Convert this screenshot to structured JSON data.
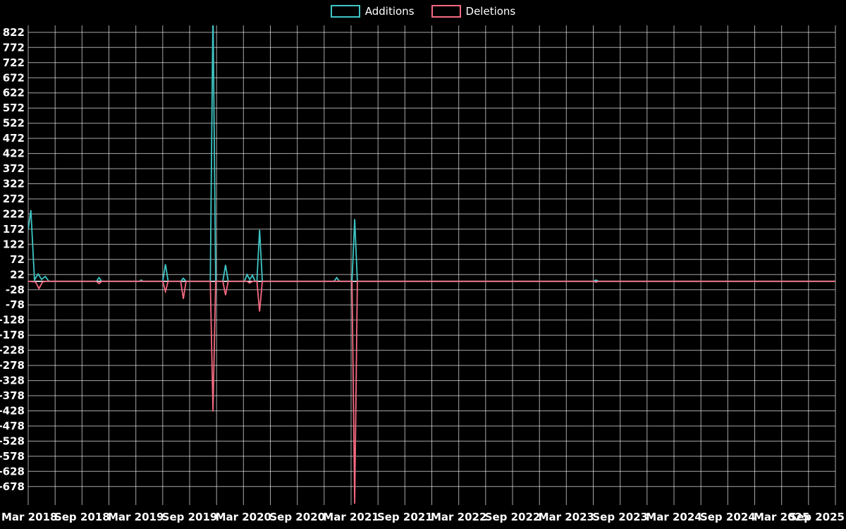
{
  "page": {
    "background": "#000000",
    "text_color": "#ffffff"
  },
  "chart_data": {
    "type": "line",
    "grid": true,
    "grid_color": "rgba(255,255,255,0.65)",
    "zero_line_color": "#ffffff",
    "background": "#000000",
    "legend": {
      "position": "top-center",
      "items": [
        "Additions",
        "Deletions"
      ]
    },
    "x_axis": {
      "label": "",
      "range_months": [
        0,
        90
      ],
      "gridline_every_months": 3,
      "tick_months": [
        0,
        6,
        12,
        18,
        24,
        30,
        36,
        42,
        48,
        54,
        60,
        66,
        72,
        78,
        84,
        90
      ],
      "tick_labels": [
        "Mar 2018",
        "Sep 2018",
        "Mar 2019",
        "Sep 2019",
        "Mar 2020",
        "Sep 2020",
        "Mar 2021",
        "Sep 2021",
        "Mar 2022",
        "Sep 2022",
        "Mar 2023",
        "Sep 2023",
        "Mar 2024",
        "Sep 2024",
        "Mar 2025",
        "Sep 2025"
      ]
    },
    "y_axis": {
      "label": "",
      "range": [
        -739,
        845
      ],
      "zero_line": true,
      "tick_values": [
        822,
        772,
        722,
        672,
        622,
        572,
        522,
        472,
        422,
        372,
        322,
        272,
        222,
        172,
        122,
        72,
        22,
        -28,
        -78,
        -128,
        -178,
        -228,
        -278,
        -328,
        -378,
        -428,
        -478,
        -528,
        -578,
        -628,
        -678
      ]
    },
    "series": [
      {
        "name": "Additions",
        "color": "#3fc5c5",
        "points": [
          [
            0,
            170
          ],
          [
            0.3,
            235
          ],
          [
            0.7,
            4
          ],
          [
            1.1,
            24
          ],
          [
            1.5,
            6
          ],
          [
            1.9,
            16
          ],
          [
            2.3,
            0
          ],
          [
            7.6,
            0
          ],
          [
            7.9,
            12
          ],
          [
            8.2,
            0
          ],
          [
            12.4,
            0
          ],
          [
            12.6,
            4
          ],
          [
            12.8,
            0
          ],
          [
            15.0,
            0
          ],
          [
            15.3,
            56
          ],
          [
            15.6,
            0
          ],
          [
            17.0,
            0
          ],
          [
            17.3,
            10
          ],
          [
            17.6,
            0
          ],
          [
            20.3,
            0
          ],
          [
            20.6,
            900
          ],
          [
            20.9,
            0
          ],
          [
            21.7,
            0
          ],
          [
            22.0,
            54
          ],
          [
            22.3,
            0
          ],
          [
            24.1,
            0
          ],
          [
            24.4,
            22
          ],
          [
            24.7,
            6
          ],
          [
            25.0,
            20
          ],
          [
            25.3,
            0
          ],
          [
            25.5,
            0
          ],
          [
            25.8,
            170
          ],
          [
            26.1,
            0
          ],
          [
            34.1,
            0
          ],
          [
            34.4,
            12
          ],
          [
            34.7,
            0
          ],
          [
            36.1,
            0
          ],
          [
            36.4,
            205
          ],
          [
            36.7,
            0
          ],
          [
            63.0,
            0
          ],
          [
            63.3,
            4
          ],
          [
            63.6,
            0
          ],
          [
            90,
            0
          ]
        ]
      },
      {
        "name": "Deletions",
        "color": "#f56a81",
        "points": [
          [
            0,
            0
          ],
          [
            0.8,
            -2
          ],
          [
            1.2,
            -24
          ],
          [
            1.6,
            -2
          ],
          [
            2.0,
            0
          ],
          [
            7.6,
            0
          ],
          [
            7.9,
            -8
          ],
          [
            8.2,
            0
          ],
          [
            15.0,
            0
          ],
          [
            15.3,
            -34
          ],
          [
            15.6,
            0
          ],
          [
            17.0,
            0
          ],
          [
            17.3,
            -58
          ],
          [
            17.6,
            0
          ],
          [
            20.3,
            0
          ],
          [
            20.6,
            -430
          ],
          [
            20.9,
            0
          ],
          [
            21.7,
            0
          ],
          [
            22.0,
            -46
          ],
          [
            22.3,
            0
          ],
          [
            24.4,
            0
          ],
          [
            24.7,
            -6
          ],
          [
            25.0,
            0
          ],
          [
            25.5,
            0
          ],
          [
            25.8,
            -100
          ],
          [
            26.1,
            0
          ],
          [
            36.1,
            0
          ],
          [
            36.4,
            -735
          ],
          [
            36.7,
            0
          ],
          [
            63.0,
            0
          ],
          [
            63.3,
            -3
          ],
          [
            63.6,
            0
          ],
          [
            90,
            0
          ]
        ]
      }
    ]
  }
}
